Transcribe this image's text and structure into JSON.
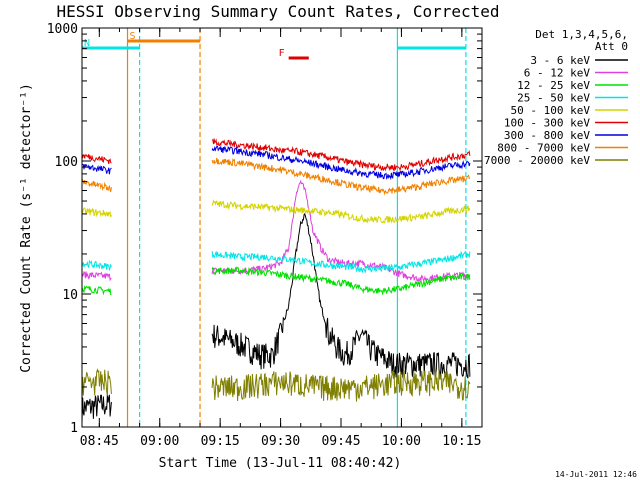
{
  "chart_data": {
    "type": "line",
    "title": "HESSI Observing Summary Count Rates, Corrected",
    "xlabel": "Start Time (13-Jul-11 08:40:42)",
    "ylabel": "Corrected Count Rate (s⁻¹ detector⁻¹)",
    "x_range": [
      "08:40:42",
      "10:20:00"
    ],
    "ylim": [
      1,
      1000
    ],
    "y_scale": "log",
    "x_tick_labels": [
      "08:45",
      "09:00",
      "09:15",
      "09:30",
      "09:45",
      "10:00",
      "10:15"
    ],
    "x_ticks_minutes": [
      525,
      540,
      555,
      570,
      585,
      600,
      615
    ],
    "y_tick_labels": [
      "1",
      "10",
      "100",
      "1000"
    ],
    "y_ticks": [
      1,
      10,
      100,
      1000
    ],
    "footer_date": "14-Jul-2011 12:46",
    "legend": {
      "placement": "right",
      "header_line1": "Det 1,3,4,5,6,",
      "header_line2": "Att 0",
      "items": [
        {
          "label": "3 - 6 keV",
          "color": "#000000"
        },
        {
          "label": "6 - 12 keV",
          "color": "#e040e0"
        },
        {
          "label": "12 - 25 keV",
          "color": "#00e000"
        },
        {
          "label": "25 - 50 keV",
          "color": "#00e5e5"
        },
        {
          "label": "50 - 100 keV",
          "color": "#d4d400"
        },
        {
          "label": "100 - 300 keV",
          "color": "#e00000"
        },
        {
          "label": "300 - 800 keV",
          "color": "#0000e0"
        },
        {
          "label": "800 - 7000 keV",
          "color": "#f08000"
        },
        {
          "label": "7000 - 20000 keV",
          "color": "#7f7f00"
        }
      ]
    },
    "flags": [
      {
        "label": "S",
        "color": "#f08000",
        "x_start": "08:52",
        "x_end": "09:10"
      },
      {
        "label": "N",
        "color": "#00e5e5",
        "x_start": "08:40:42",
        "x_end": "08:55"
      },
      {
        "label": "N",
        "color": "#00e5e5",
        "x_start": "09:59",
        "x_end": "10:16"
      },
      {
        "label": "F",
        "color": "#e00000",
        "x_start": "09:32",
        "x_end": "09:37"
      }
    ],
    "night_boundaries": [
      "08:55",
      "09:59",
      "10:16"
    ],
    "saa_boundaries": [
      "08:52",
      "09:10"
    ],
    "series": [
      {
        "name": "3 - 6 keV",
        "color": "#000000",
        "segments": [
          {
            "x": [
              "08:40:42",
              "08:48"
            ],
            "y": [
              1.4,
              1.5
            ]
          },
          {
            "x": [
              "09:13",
              "09:20",
              "09:25",
              "09:28",
              "09:30",
              "09:32",
              "09:33",
              "09:34",
              "09:35",
              "09:36",
              "09:37",
              "09:38",
              "09:39",
              "09:40",
              "09:42",
              "09:44",
              "09:46",
              "09:48",
              "09:50",
              "09:52",
              "09:54",
              "09:58",
              "10:05",
              "10:12",
              "10:17"
            ],
            "y": [
              5,
              4.2,
              3.5,
              3.5,
              5,
              8,
              13,
              22,
              33,
              40,
              30,
              20,
              12,
              8,
              5,
              4,
              3.5,
              4,
              5,
              4,
              3.5,
              3,
              3,
              3,
              3
            ]
          }
        ]
      },
      {
        "name": "6 - 12 keV",
        "color": "#e040e0",
        "segments": [
          {
            "x": [
              "08:40:42",
              "08:48"
            ],
            "y": [
              14,
              13.5
            ]
          },
          {
            "x": [
              "09:13",
              "09:20",
              "09:26",
              "09:30",
              "09:32",
              "09:33",
              "09:34",
              "09:35",
              "09:36",
              "09:37",
              "09:38",
              "09:40",
              "09:42",
              "09:46",
              "09:50",
              "09:55",
              "10:00",
              "10:05",
              "10:10",
              "10:17"
            ],
            "y": [
              15,
              15,
              15.5,
              17,
              22,
              35,
              60,
              70,
              60,
              45,
              30,
              22,
              18,
              17,
              17,
              16,
              14,
              13,
              13.5,
              14
            ]
          }
        ]
      },
      {
        "name": "12 - 25 keV",
        "color": "#00e000",
        "segments": [
          {
            "x": [
              "08:40:42",
              "08:48"
            ],
            "y": [
              11,
              10.5
            ]
          },
          {
            "x": [
              "09:13",
              "09:20",
              "09:26",
              "09:30",
              "09:34",
              "09:38",
              "09:42",
              "09:46",
              "09:50",
              "09:55",
              "10:00",
              "10:05",
              "10:10",
              "10:17"
            ],
            "y": [
              15,
              15,
              14.5,
              14,
              13.5,
              13,
              12.5,
              12,
              11,
              10.5,
              11,
              12,
              13,
              13.5
            ]
          }
        ]
      },
      {
        "name": "25 - 50 keV",
        "color": "#00e5e5",
        "segments": [
          {
            "x": [
              "08:40:42",
              "08:48"
            ],
            "y": [
              17,
              16
            ]
          },
          {
            "x": [
              "09:13",
              "09:20",
              "09:26",
              "09:30",
              "09:34",
              "09:38",
              "09:42",
              "09:46",
              "09:50",
              "09:55",
              "10:00",
              "10:05",
              "10:10",
              "10:17"
            ],
            "y": [
              20,
              19,
              19,
              18.5,
              18,
              17,
              16.5,
              16,
              15.5,
              15.5,
              16,
              17,
              18,
              20
            ]
          }
        ]
      },
      {
        "name": "50 - 100 keV",
        "color": "#d4d400",
        "segments": [
          {
            "x": [
              "08:40:42",
              "08:48"
            ],
            "y": [
              42,
              40
            ]
          },
          {
            "x": [
              "09:13",
              "09:20",
              "09:26",
              "09:30",
              "09:34",
              "09:38",
              "09:42",
              "09:46",
              "09:50",
              "09:55",
              "10:00",
              "10:05",
              "10:10",
              "10:17"
            ],
            "y": [
              48,
              46,
              45,
              44,
              43,
              42,
              41,
              39,
              37,
              36,
              37,
              38,
              41,
              44
            ]
          }
        ]
      },
      {
        "name": "100 - 300 keV",
        "color": "#e00000",
        "segments": [
          {
            "x": [
              "08:40:42",
              "08:48"
            ],
            "y": [
              110,
              100
            ]
          },
          {
            "x": [
              "09:13",
              "09:20",
              "09:26",
              "09:30",
              "09:34",
              "09:38",
              "09:42",
              "09:46",
              "09:50",
              "09:55",
              "10:00",
              "10:05",
              "10:10",
              "10:17"
            ],
            "y": [
              140,
              132,
              126,
              120,
              118,
              112,
              106,
              99,
              94,
              90,
              90,
              96,
              104,
              112
            ]
          }
        ]
      },
      {
        "name": "300 - 800 keV",
        "color": "#0000e0",
        "segments": [
          {
            "x": [
              "08:40:42",
              "08:48"
            ],
            "y": [
              92,
              84
            ]
          },
          {
            "x": [
              "09:13",
              "09:20",
              "09:26",
              "09:30",
              "09:34",
              "09:38",
              "09:42",
              "09:46",
              "09:50",
              "09:55",
              "10:00",
              "10:05",
              "10:10",
              "10:17"
            ],
            "y": [
              125,
              118,
              112,
              106,
              101,
              96,
              90,
              85,
              81,
              78,
              79,
              84,
              90,
              96
            ]
          }
        ]
      },
      {
        "name": "800 - 7000 keV",
        "color": "#f08000",
        "segments": [
          {
            "x": [
              "08:40:42",
              "08:48"
            ],
            "y": [
              70,
              62
            ]
          },
          {
            "x": [
              "09:13",
              "09:20",
              "09:26",
              "09:30",
              "09:34",
              "09:38",
              "09:42",
              "09:46",
              "09:50",
              "09:55",
              "10:00",
              "10:05",
              "10:10",
              "10:17"
            ],
            "y": [
              102,
              96,
              90,
              86,
              81,
              76,
              72,
              67,
              63,
              60,
              61,
              65,
              70,
              74
            ]
          }
        ]
      },
      {
        "name": "7000 - 20000 keV",
        "color": "#7f7f00",
        "segments": [
          {
            "x": [
              "08:40:42",
              "08:48"
            ],
            "y": [
              2.2,
              2.2
            ]
          },
          {
            "x": [
              "09:13",
              "09:20",
              "09:30",
              "09:40",
              "09:50",
              "10:00",
              "10:10",
              "10:17"
            ],
            "y": [
              2,
              2,
              2.2,
              2,
              2,
              2.2,
              2.2,
              2
            ]
          }
        ]
      }
    ]
  }
}
